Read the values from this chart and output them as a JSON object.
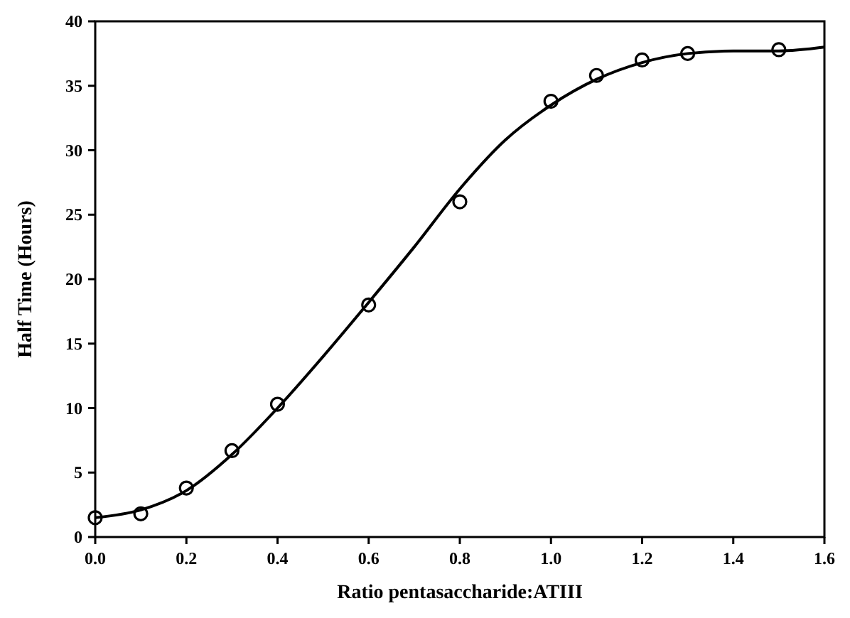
{
  "chart_data": {
    "type": "scatter",
    "xlabel": "Ratio pentasaccharide:ATIII",
    "ylabel": "Half Time (Hours)",
    "xlim": [
      0,
      1.6
    ],
    "ylim": [
      0,
      40
    ],
    "xticks": [
      {
        "value": 0,
        "label": "0.0"
      },
      {
        "value": 0.2,
        "label": "0.2"
      },
      {
        "value": 0.4,
        "label": "0.4"
      },
      {
        "value": 0.6,
        "label": "0.6"
      },
      {
        "value": 0.8,
        "label": "0.8"
      },
      {
        "value": 1,
        "label": "1.0"
      },
      {
        "value": 1.2,
        "label": "1.2"
      },
      {
        "value": 1.4,
        "label": "1.4"
      },
      {
        "value": 1.6,
        "label": "1.6"
      }
    ],
    "yticks": [
      0,
      5,
      10,
      15,
      20,
      25,
      30,
      35,
      40
    ],
    "grid": false,
    "series": [
      {
        "color": "#000000",
        "marker": "circle",
        "x": [
          0,
          0.1,
          0.2,
          0.3,
          0.4,
          0.6,
          0.8,
          1.0,
          1.1,
          1.2,
          1.3,
          1.5
        ],
        "values": [
          1.5,
          1.8,
          3.8,
          6.7,
          10.3,
          18,
          26,
          33.8,
          35.8,
          37,
          37.5,
          37.8
        ]
      },
      {
        "type": "line",
        "color": "#000000",
        "line_style": "solid",
        "x": [
          0,
          0.1,
          0.2,
          0.3,
          0.4,
          0.5,
          0.6,
          0.7,
          0.8,
          0.9,
          1.0,
          1.1,
          1.2,
          1.3,
          1.4,
          1.5,
          1.6
        ],
        "values": [
          1.5,
          2.1,
          3.6,
          6.4,
          10,
          14,
          18.2,
          22.5,
          27,
          30.8,
          33.5,
          35.5,
          36.8,
          37.5,
          37.7,
          37.7,
          38
        ]
      }
    ]
  }
}
